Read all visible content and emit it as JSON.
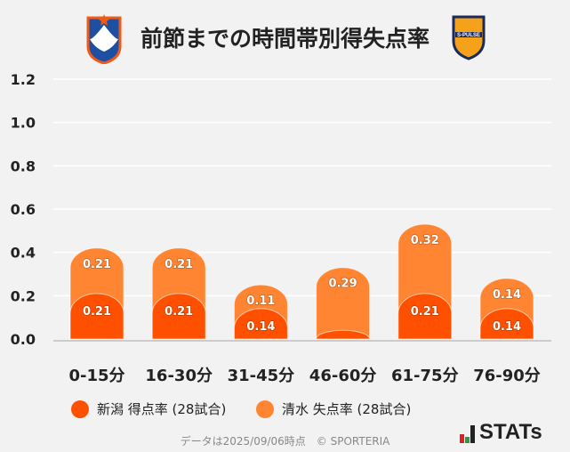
{
  "title": "前節までの時間帯別得失点率",
  "logos": {
    "home": "ALBIREX",
    "away": "S-PULSE"
  },
  "chart_data": {
    "type": "bar",
    "stacked": true,
    "categories": [
      "0-15分",
      "16-30分",
      "31-45分",
      "46-60分",
      "61-75分",
      "76-90分"
    ],
    "series": [
      {
        "name": "新潟 得点率 (28試合)",
        "color": "#FF5000",
        "values": [
          0.21,
          0.21,
          0.14,
          0.04,
          0.21,
          0.14
        ],
        "labels": [
          "0.21",
          "0.21",
          "0.14",
          "",
          "0.21",
          "0.14"
        ]
      },
      {
        "name": "清水 失点率 (28試合)",
        "color": "#FF8533",
        "values": [
          0.21,
          0.21,
          0.11,
          0.29,
          0.32,
          0.14
        ],
        "labels": [
          "0.21",
          "0.21",
          "0.11",
          "0.29",
          "0.32",
          "0.14"
        ]
      }
    ],
    "ylim": [
      0,
      1.2
    ],
    "yticks": [
      "0.0",
      "0.2",
      "0.4",
      "0.6",
      "0.8",
      "1.0",
      "1.2"
    ],
    "grid": true,
    "legend": "bottom"
  },
  "footer": "データは2025/09/06時点　© SPORTERIA",
  "brand": "STATs"
}
